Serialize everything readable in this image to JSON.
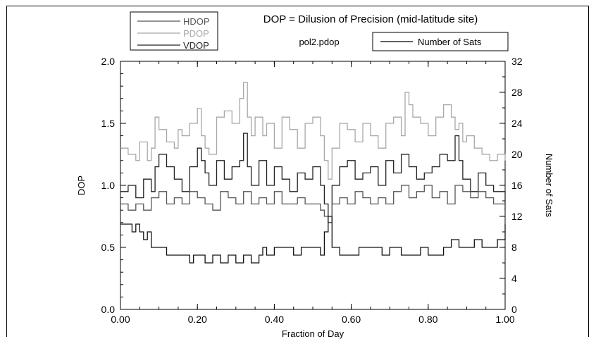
{
  "chart_data": {
    "type": "line",
    "title": "DOP = Dilusion of Precision (mid-latitude site)",
    "subtitle": "pol2.pdop",
    "xlabel": "Fraction of Day",
    "ylabel": "DOP",
    "y2label": "Number of Sats",
    "xlim": [
      0,
      1
    ],
    "ylim": [
      0,
      2
    ],
    "y2lim": [
      0,
      32
    ],
    "x_ticks": [
      "0.00",
      "0.20",
      "0.40",
      "0.60",
      "0.80",
      "1.00"
    ],
    "y_ticks": [
      "0.0",
      "0.5",
      "1.0",
      "1.5",
      "2.0"
    ],
    "y2_ticks": [
      "0",
      "4",
      "8",
      "12",
      "16",
      "20",
      "24",
      "28",
      "32"
    ],
    "legend": [
      {
        "name": "HDOP",
        "color": "#555555"
      },
      {
        "name": "PDOP",
        "color": "#a8a8a8"
      },
      {
        "name": "VDOP",
        "color": "#222222"
      }
    ],
    "legend2": [
      {
        "name": "Number of Sats",
        "color": "#000000"
      }
    ],
    "series": [
      {
        "name": "PDOP",
        "color": "#a8a8a8",
        "axis": "left",
        "x": [
          0,
          0.02,
          0.04,
          0.05,
          0.07,
          0.08,
          0.09,
          0.1,
          0.12,
          0.14,
          0.15,
          0.16,
          0.18,
          0.2,
          0.21,
          0.22,
          0.23,
          0.25,
          0.27,
          0.29,
          0.31,
          0.32,
          0.33,
          0.34,
          0.35,
          0.37,
          0.38,
          0.4,
          0.42,
          0.44,
          0.46,
          0.48,
          0.5,
          0.52,
          0.53,
          0.54,
          0.55,
          0.57,
          0.59,
          0.61,
          0.63,
          0.65,
          0.67,
          0.69,
          0.71,
          0.73,
          0.74,
          0.75,
          0.76,
          0.78,
          0.8,
          0.82,
          0.84,
          0.86,
          0.87,
          0.88,
          0.89,
          0.9,
          0.92,
          0.94,
          0.96,
          0.98,
          1.0
        ],
        "y": [
          1.3,
          1.25,
          1.2,
          1.35,
          1.2,
          1.3,
          1.55,
          1.45,
          1.35,
          1.3,
          1.45,
          1.4,
          1.5,
          1.62,
          1.4,
          1.3,
          1.25,
          1.55,
          1.6,
          1.5,
          1.7,
          1.83,
          1.55,
          1.4,
          1.55,
          1.4,
          1.5,
          1.3,
          1.55,
          1.45,
          1.3,
          1.5,
          1.55,
          1.4,
          1.2,
          1.05,
          1.3,
          1.5,
          1.45,
          1.35,
          1.5,
          1.4,
          1.3,
          1.5,
          1.55,
          1.4,
          1.75,
          1.65,
          1.55,
          1.5,
          1.4,
          1.55,
          1.65,
          1.55,
          1.45,
          1.5,
          1.35,
          1.4,
          1.3,
          1.25,
          1.2,
          1.25,
          1.2
        ]
      },
      {
        "name": "VDOP",
        "color": "#222222",
        "axis": "left",
        "x": [
          0,
          0.02,
          0.04,
          0.06,
          0.08,
          0.09,
          0.1,
          0.12,
          0.14,
          0.16,
          0.18,
          0.2,
          0.21,
          0.22,
          0.23,
          0.25,
          0.27,
          0.29,
          0.31,
          0.32,
          0.33,
          0.34,
          0.36,
          0.38,
          0.4,
          0.42,
          0.44,
          0.46,
          0.48,
          0.5,
          0.52,
          0.53,
          0.54,
          0.55,
          0.57,
          0.59,
          0.61,
          0.63,
          0.65,
          0.67,
          0.69,
          0.71,
          0.73,
          0.75,
          0.77,
          0.79,
          0.81,
          0.83,
          0.85,
          0.87,
          0.88,
          0.89,
          0.91,
          0.93,
          0.95,
          0.97,
          1.0
        ],
        "y": [
          0.95,
          1.0,
          0.9,
          1.05,
          0.95,
          1.15,
          1.25,
          1.15,
          1.05,
          0.95,
          1.15,
          1.3,
          1.2,
          1.1,
          1.0,
          1.2,
          1.05,
          1.15,
          1.2,
          1.42,
          1.15,
          1.0,
          1.2,
          1.0,
          1.15,
          1.05,
          0.95,
          1.1,
          1.05,
          1.15,
          1.0,
          0.85,
          0.7,
          1.0,
          1.15,
          1.2,
          1.05,
          1.1,
          1.15,
          1.0,
          1.2,
          1.1,
          1.25,
          1.15,
          1.05,
          1.1,
          1.15,
          1.25,
          1.2,
          1.4,
          1.2,
          1.05,
          0.95,
          1.1,
          1.0,
          0.95,
          0.8
        ]
      },
      {
        "name": "HDOP",
        "color": "#555555",
        "axis": "left",
        "x": [
          0,
          0.02,
          0.04,
          0.06,
          0.08,
          0.1,
          0.12,
          0.14,
          0.16,
          0.18,
          0.2,
          0.22,
          0.24,
          0.26,
          0.28,
          0.3,
          0.32,
          0.34,
          0.36,
          0.38,
          0.4,
          0.42,
          0.44,
          0.46,
          0.48,
          0.5,
          0.52,
          0.53,
          0.54,
          0.55,
          0.57,
          0.59,
          0.61,
          0.63,
          0.65,
          0.67,
          0.69,
          0.71,
          0.73,
          0.75,
          0.77,
          0.79,
          0.81,
          0.83,
          0.85,
          0.87,
          0.89,
          0.91,
          0.93,
          0.95,
          0.97,
          1.0
        ],
        "y": [
          0.85,
          0.8,
          0.85,
          0.8,
          0.9,
          0.95,
          0.85,
          0.9,
          0.85,
          0.95,
          0.9,
          0.85,
          0.8,
          0.95,
          0.9,
          0.85,
          0.95,
          0.85,
          0.9,
          0.85,
          0.95,
          0.85,
          0.85,
          0.9,
          0.85,
          0.85,
          0.8,
          0.75,
          0.7,
          0.85,
          0.9,
          0.85,
          0.95,
          0.9,
          0.85,
          0.9,
          0.85,
          0.95,
          1.0,
          0.9,
          0.95,
          1.0,
          0.9,
          0.95,
          0.85,
          1.0,
          0.95,
          0.9,
          0.95,
          0.9,
          0.85,
          0.82
        ]
      },
      {
        "name": "Number of Sats",
        "color": "#111111",
        "axis": "right",
        "x": [
          0,
          0.03,
          0.04,
          0.05,
          0.06,
          0.07,
          0.08,
          0.1,
          0.12,
          0.16,
          0.18,
          0.19,
          0.21,
          0.22,
          0.24,
          0.26,
          0.28,
          0.3,
          0.32,
          0.34,
          0.36,
          0.37,
          0.38,
          0.4,
          0.43,
          0.45,
          0.47,
          0.5,
          0.52,
          0.53,
          0.54,
          0.55,
          0.57,
          0.6,
          0.62,
          0.65,
          0.68,
          0.7,
          0.73,
          0.75,
          0.78,
          0.8,
          0.82,
          0.84,
          0.86,
          0.88,
          0.9,
          0.92,
          0.94,
          0.96,
          0.98,
          1.0
        ],
        "y": [
          11,
          10,
          11,
          10,
          9,
          10,
          8,
          8,
          7,
          7,
          6,
          7,
          7,
          6,
          7,
          6,
          7,
          6,
          7,
          6,
          7,
          8,
          7,
          8,
          8,
          7,
          8,
          8,
          7,
          10,
          12,
          8,
          7,
          7,
          8,
          8,
          7,
          8,
          7,
          7,
          8,
          7,
          7,
          8,
          9,
          8,
          8,
          9,
          8,
          8,
          9,
          11
        ]
      }
    ]
  }
}
